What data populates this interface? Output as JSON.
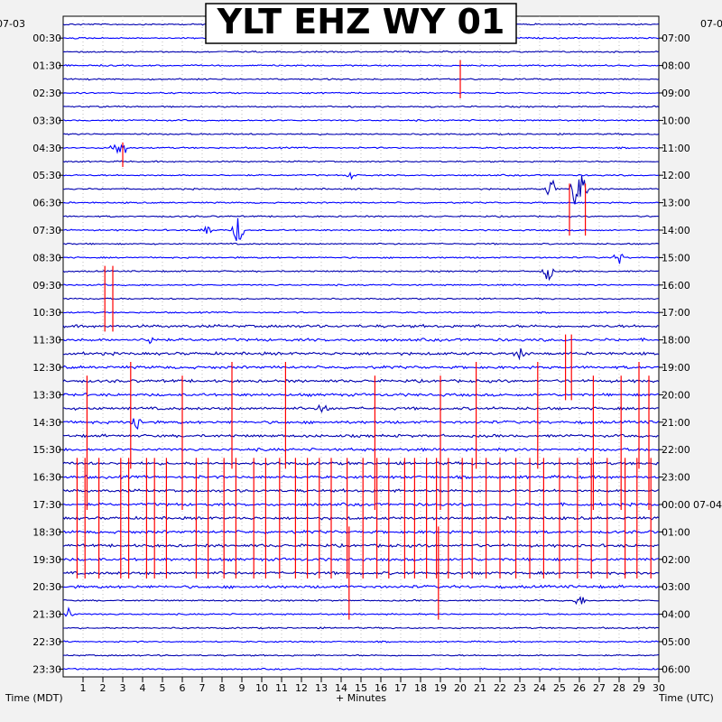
{
  "chart_data": {
    "type": "line",
    "title": "YLT EHZ WY 01",
    "xlabel": "+ Minutes",
    "left_axis_label": "Time (MDT)",
    "right_axis_label": "Time (UTC)",
    "left_date_label": "07-03",
    "right_date_label": "07-0",
    "right_date_label_2": "07-04",
    "xlim": [
      0,
      30
    ],
    "x_ticks": [
      "1",
      "2",
      "3",
      "4",
      "5",
      "6",
      "7",
      "8",
      "9",
      "10",
      "11",
      "12",
      "13",
      "14",
      "15",
      "16",
      "17",
      "18",
      "19",
      "20",
      "21",
      "22",
      "23",
      "24",
      "25",
      "26",
      "27",
      "28",
      "29",
      "30"
    ],
    "left_ticks": [
      "00:30",
      "01:30",
      "02:30",
      "03:30",
      "04:30",
      "05:30",
      "06:30",
      "07:30",
      "08:30",
      "09:30",
      "10:30",
      "11:30",
      "12:30",
      "13:30",
      "14:30",
      "15:30",
      "16:30",
      "17:30",
      "18:30",
      "19:30",
      "20:30",
      "21:30",
      "22:30",
      "23:30"
    ],
    "right_ticks": [
      "07:00",
      "08:00",
      "09:00",
      "10:00",
      "11:00",
      "12:00",
      "13:00",
      "14:00",
      "15:00",
      "16:00",
      "17:00",
      "18:00",
      "19:00",
      "20:00",
      "21:00",
      "22:00",
      "23:00",
      "00:00",
      "01:00",
      "02:00",
      "03:00",
      "04:00",
      "05:00",
      "06:00"
    ],
    "trace_count": 48,
    "trace_colors": [
      "#0000b0",
      "#0000ff"
    ],
    "clipped_color": "#ff0000",
    "events": [
      {
        "trace": 9,
        "minute": 3.0,
        "amplitude": 0.6
      },
      {
        "trace": 9,
        "minute": 2.6,
        "amplitude": 0.4
      },
      {
        "trace": 11,
        "minute": 14.6,
        "amplitude": 0.3
      },
      {
        "trace": 12,
        "minute": 24.6,
        "amplitude": 1.0
      },
      {
        "trace": 12,
        "minute": 25.8,
        "amplitude": 1.4
      },
      {
        "trace": 12,
        "minute": 26.2,
        "amplitude": 1.2
      },
      {
        "trace": 15,
        "minute": 7.2,
        "amplitude": 0.6
      },
      {
        "trace": 15,
        "minute": 8.8,
        "amplitude": 1.3
      },
      {
        "trace": 17,
        "minute": 28.0,
        "amplitude": 0.5
      },
      {
        "trace": 18,
        "minute": 24.4,
        "amplitude": 0.8
      },
      {
        "trace": 23,
        "minute": 4.5,
        "amplitude": 0.5
      },
      {
        "trace": 24,
        "minute": 23.0,
        "amplitude": 0.4
      },
      {
        "trace": 28,
        "minute": 13.1,
        "amplitude": 0.5
      },
      {
        "trace": 29,
        "minute": 3.7,
        "amplitude": 0.7
      },
      {
        "trace": 42,
        "minute": 26.0,
        "amplitude": 0.5
      },
      {
        "trace": 43,
        "minute": 0.3,
        "amplitude": 0.5
      }
    ],
    "red_spikes": [
      {
        "start": 9,
        "end": 10,
        "minutes": [
          3.0
        ]
      },
      {
        "start": 3,
        "end": 5,
        "minutes": [
          20.0
        ]
      },
      {
        "start": 12,
        "end": 15,
        "minutes": [
          25.5,
          26.3
        ]
      },
      {
        "start": 18,
        "end": 22,
        "minutes": [
          2.1,
          2.5
        ]
      },
      {
        "start": 23,
        "end": 27,
        "minutes": [
          25.3,
          25.6
        ]
      },
      {
        "start": 25,
        "end": 32,
        "minutes": [
          3.4,
          8.5,
          11.2,
          20.8,
          23.9,
          29.0
        ]
      },
      {
        "start": 26,
        "end": 35,
        "minutes": [
          1.2,
          6.0,
          15.7,
          19.0,
          26.7,
          28.1,
          29.5
        ]
      },
      {
        "start": 32,
        "end": 40,
        "minutes": [
          0.7,
          1.1,
          1.8,
          2.9,
          3.3,
          4.2,
          4.6,
          5.2,
          6.7,
          7.3,
          8.1,
          8.7,
          9.6,
          10.2,
          10.9,
          11.7,
          12.3,
          12.9,
          13.5,
          14.3,
          15.1,
          15.8,
          16.4,
          17.2,
          17.7,
          18.3,
          18.8,
          19.4,
          20.1,
          20.6,
          21.3,
          22.0,
          22.8,
          23.5,
          24.2,
          25.0,
          25.9,
          26.6,
          27.4,
          28.3,
          28.9,
          29.6
        ]
      },
      {
        "start": 37,
        "end": 43,
        "minutes": [
          14.4,
          18.9
        ]
      }
    ]
  }
}
